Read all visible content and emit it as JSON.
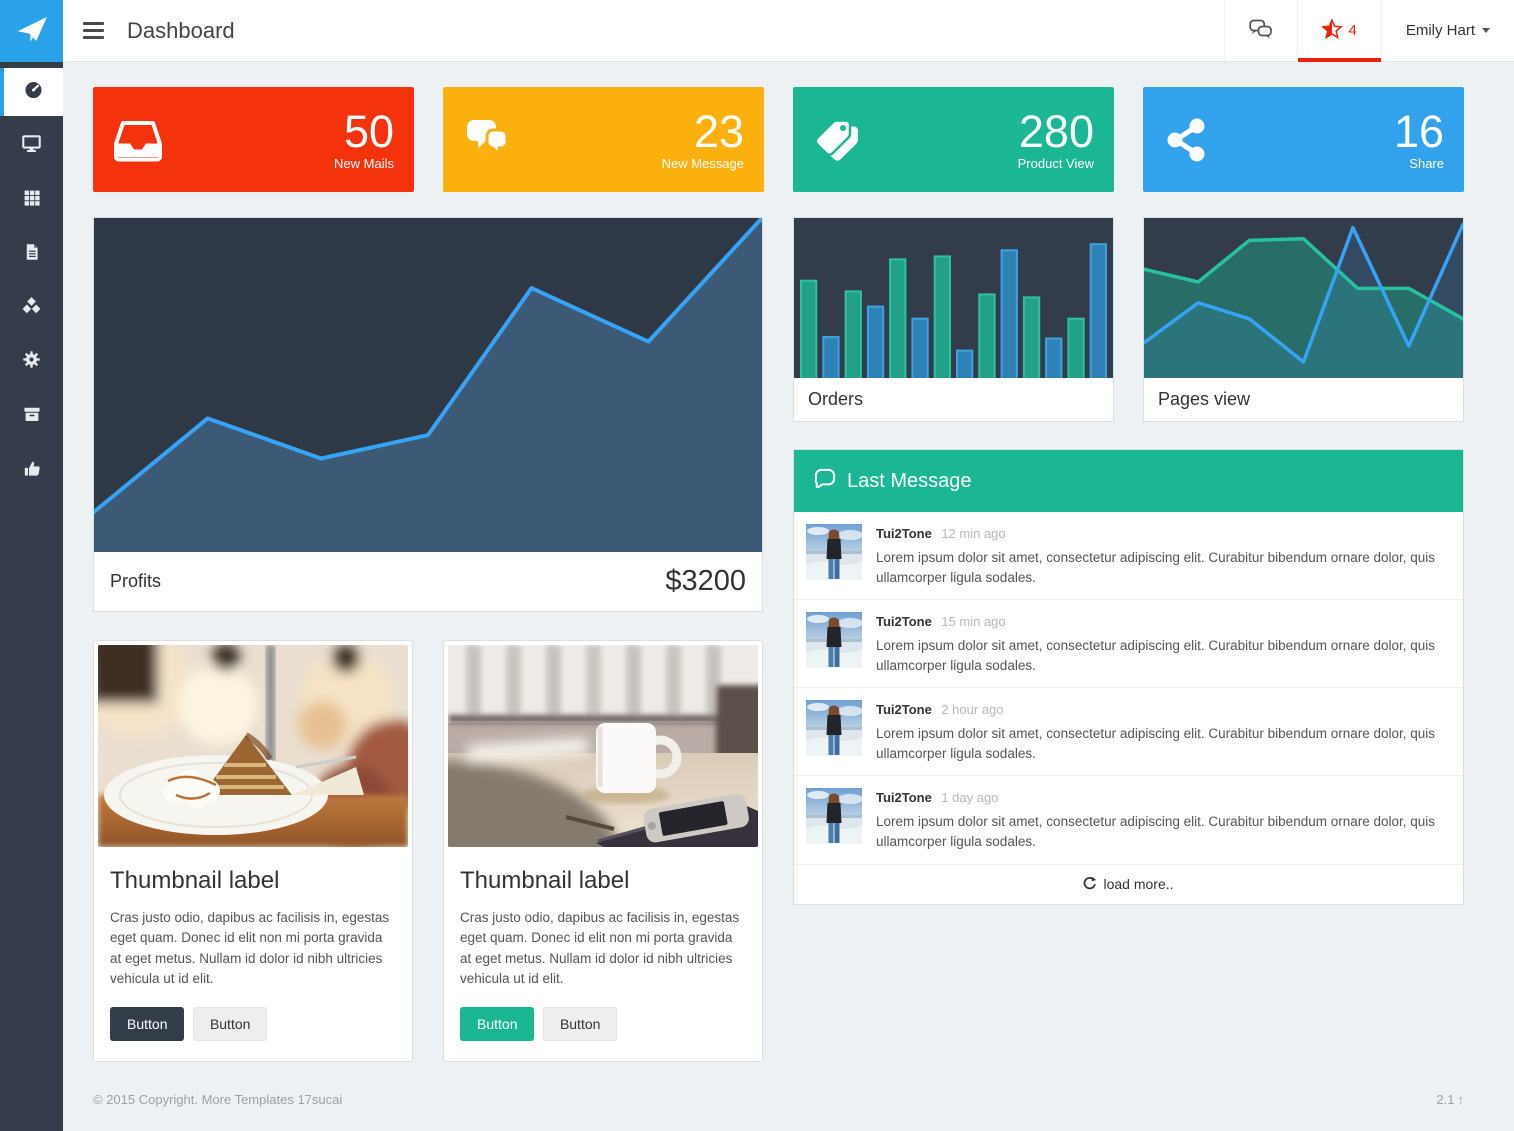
{
  "navbar": {
    "title": "Dashboard",
    "star_count": "4",
    "user_name": "Emily Hart"
  },
  "sidebar": {
    "items": [
      {
        "icon": "dashboard-icon",
        "active": true
      },
      {
        "icon": "desktop-icon",
        "active": false
      },
      {
        "icon": "table-icon",
        "active": false
      },
      {
        "icon": "file-icon",
        "active": false
      },
      {
        "icon": "cubes-icon",
        "active": false
      },
      {
        "icon": "gear-icon",
        "active": false
      },
      {
        "icon": "archive-icon",
        "active": false
      },
      {
        "icon": "thumbs-up-icon",
        "active": false
      }
    ]
  },
  "stats": [
    {
      "value": "50",
      "label": "New Mails",
      "color": "#f4320c",
      "icon": "inbox-icon"
    },
    {
      "value": "23",
      "label": "New Message",
      "color": "#fcb00d",
      "icon": "comments-icon"
    },
    {
      "value": "280",
      "label": "Product View",
      "color": "#1bb795",
      "icon": "tags-icon"
    },
    {
      "value": "16",
      "label": "Share",
      "color": "#32a2ec",
      "icon": "share-icon"
    }
  ],
  "chart_data": {
    "profits": {
      "type": "area",
      "label": "Profits",
      "value": "$3200",
      "x": [
        0,
        0.17,
        0.34,
        0.5,
        0.655,
        0.83,
        1.0
      ],
      "y": [
        0.12,
        0.4,
        0.28,
        0.35,
        0.79,
        0.63,
        1.0
      ],
      "line_color": "#36a3f7",
      "fill_color": "rgba(74,123,166,0.50)",
      "bg": "#2f3946"
    },
    "orders": {
      "type": "bar",
      "label": "Orders",
      "values": [
        0.64,
        0.27,
        0.57,
        0.47,
        0.78,
        0.39,
        0.8,
        0.18,
        0.55,
        0.84,
        0.53,
        0.26,
        0.39,
        0.88
      ],
      "colors": [
        {
          "fill": "#22a186",
          "stroke": "#2cc3a0"
        },
        {
          "fill": "#2e82b6",
          "stroke": "#3ea2e0"
        }
      ],
      "bg": "#333d4a"
    },
    "pages_view": {
      "type": "line",
      "label": "Pages view",
      "series": [
        {
          "name": "green",
          "x": [
            0,
            0.17,
            0.33,
            0.5,
            0.67,
            0.83,
            1.0
          ],
          "y": [
            0.68,
            0.6,
            0.86,
            0.87,
            0.56,
            0.56,
            0.37
          ],
          "line_color": "#26c2a0",
          "fill_color": "rgba(26,188,156,0.38)"
        },
        {
          "name": "blue",
          "x": [
            0,
            0.17,
            0.33,
            0.5,
            0.655,
            0.83,
            1.0
          ],
          "y": [
            0.22,
            0.47,
            0.37,
            0.1,
            0.94,
            0.2,
            0.96
          ],
          "line_color": "#36a3f7",
          "fill_color": "rgba(54,163,247,0.14)"
        }
      ],
      "bg": "#333d4a"
    }
  },
  "messages": {
    "header": "Last Message",
    "items": [
      {
        "name": "Tui2Tone",
        "time": "12 min ago",
        "text": "Lorem ipsum dolor sit amet, consectetur adipiscing elit. Curabitur bibendum ornare dolor, quis ullamcorper ligula sodales."
      },
      {
        "name": "Tui2Tone",
        "time": "15 min ago",
        "text": "Lorem ipsum dolor sit amet, consectetur adipiscing elit. Curabitur bibendum ornare dolor, quis ullamcorper ligula sodales."
      },
      {
        "name": "Tui2Tone",
        "time": "2 hour ago",
        "text": "Lorem ipsum dolor sit amet, consectetur adipiscing elit. Curabitur bibendum ornare dolor, quis ullamcorper ligula sodales."
      },
      {
        "name": "Tui2Tone",
        "time": "1 day ago",
        "text": "Lorem ipsum dolor sit amet, consectetur adipiscing elit. Curabitur bibendum ornare dolor, quis ullamcorper ligula sodales."
      }
    ],
    "load_more": "load more.."
  },
  "thumbnails": [
    {
      "title": "Thumbnail label",
      "text": "Cras justo odio, dapibus ac facilisis in, egestas eget quam. Donec id elit non mi porta gravida at eget metus. Nullam id dolor id nibh ultricies vehicula ut id elit.",
      "buttons": [
        {
          "label": "Button"
        },
        {
          "label": "Button"
        }
      ]
    },
    {
      "title": "Thumbnail label",
      "text": "Cras justo odio, dapibus ac facilisis in, egestas eget quam. Donec id elit non mi porta gravida at eget metus. Nullam id dolor id nibh ultricies vehicula ut id elit.",
      "buttons": [
        {
          "label": "Button"
        },
        {
          "label": "Button"
        }
      ]
    }
  ],
  "footer": {
    "copyright": "© 2015 Copyright. More Templates 17sucai",
    "version": "2.1"
  }
}
